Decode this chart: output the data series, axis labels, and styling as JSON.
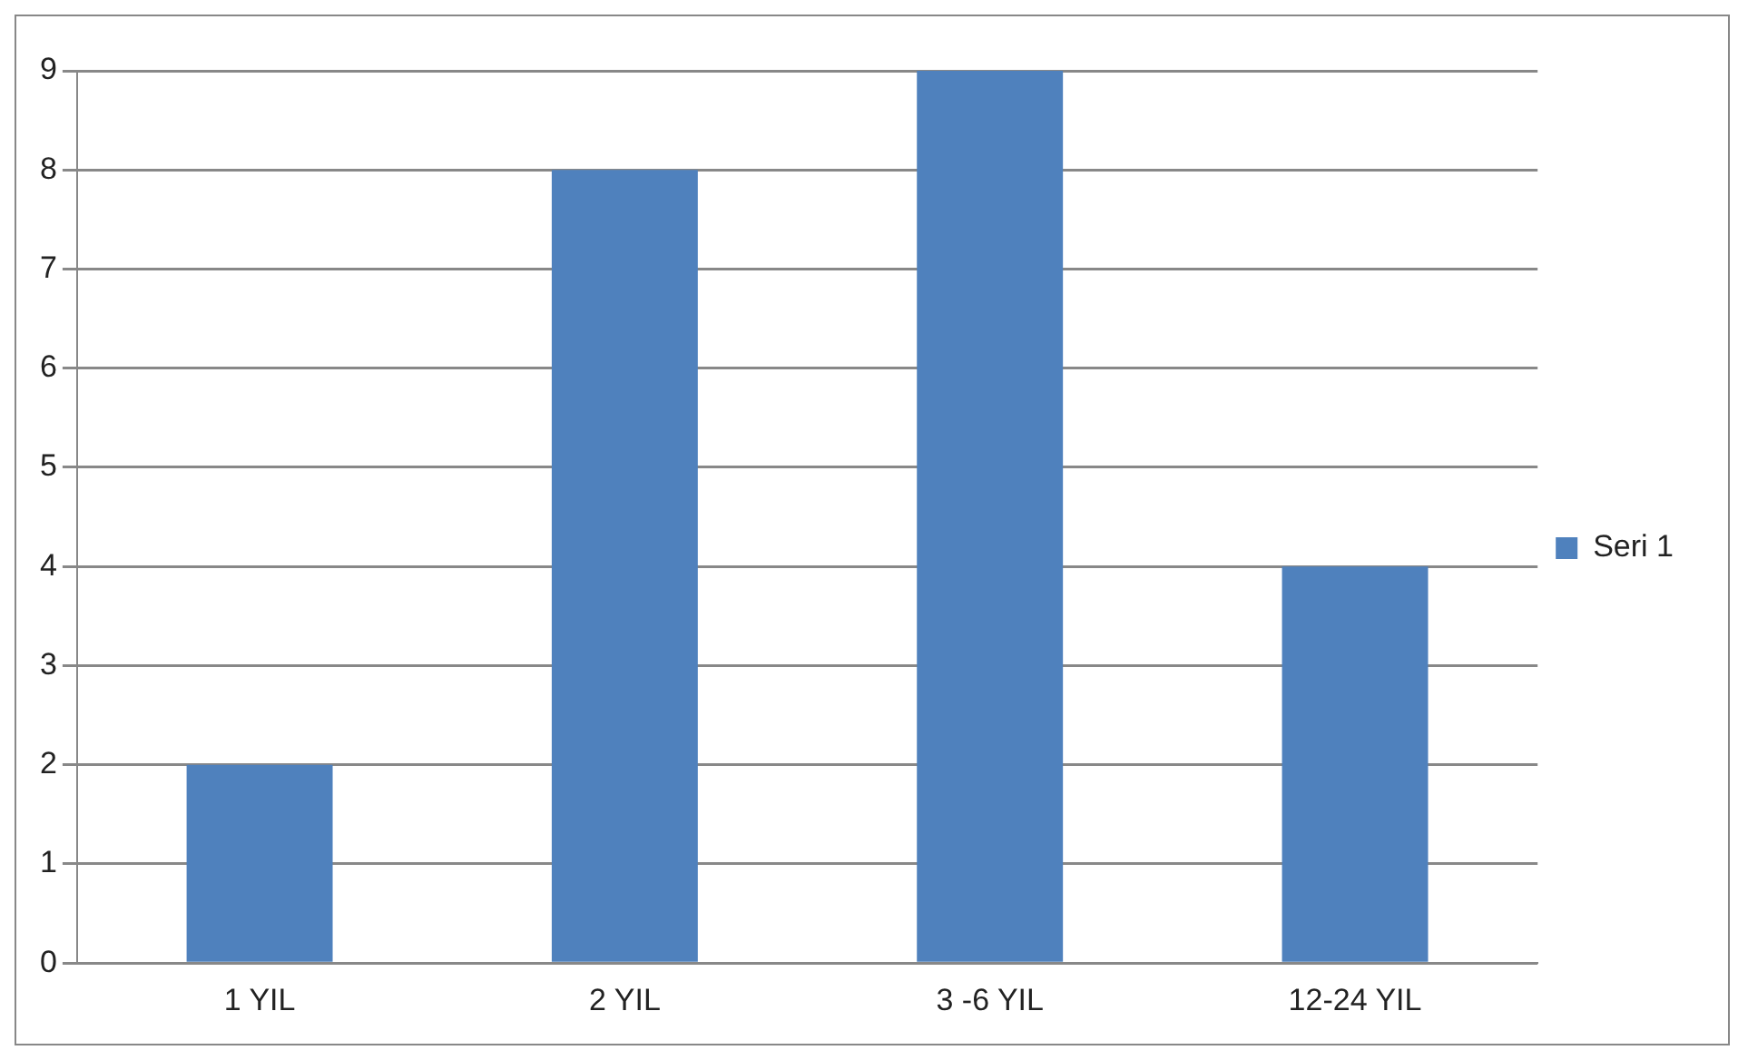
{
  "chart_data": {
    "type": "bar",
    "categories": [
      "1 YIL",
      "2 YIL",
      "3 -6 YIL",
      "12-24 YIL"
    ],
    "series": [
      {
        "name": "Seri 1",
        "color": "#4f81bd",
        "values": [
          2,
          8,
          9,
          4
        ]
      }
    ],
    "ylim": [
      0,
      9
    ],
    "yticks": [
      0,
      1,
      2,
      3,
      4,
      5,
      6,
      7,
      8,
      9
    ],
    "grid": "y",
    "legend": "right"
  }
}
